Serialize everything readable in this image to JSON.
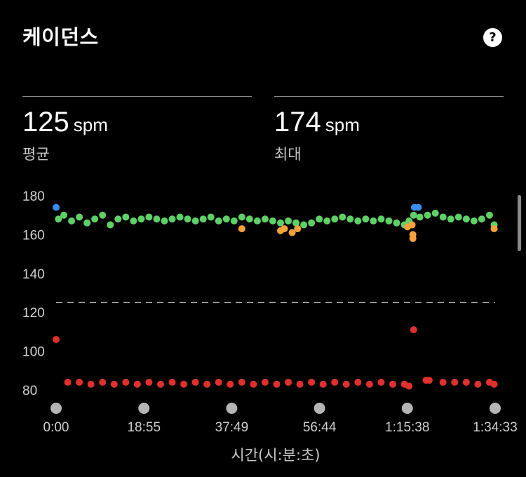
{
  "header": {
    "title": "케이던스",
    "help_icon": "question-icon"
  },
  "stats": [
    {
      "value": "125",
      "unit": "spm",
      "label": "평균"
    },
    {
      "value": "174",
      "unit": "spm",
      "label": "최대"
    }
  ],
  "chart_data": {
    "type": "scatter",
    "xlabel": "시간(시:분:초)",
    "ylabel": "",
    "x_ticks": [
      "0:00",
      "18:55",
      "37:49",
      "56:44",
      "1:15:38",
      "1:34:33"
    ],
    "x_tick_seconds": [
      0,
      1135,
      2269,
      3404,
      4538,
      5673
    ],
    "y_ticks": [
      180,
      160,
      140,
      120,
      100,
      80
    ],
    "ylim": [
      80,
      180
    ],
    "xlim": [
      0,
      5673
    ],
    "average_line": 125,
    "grid": false,
    "colors": {
      "high": "#5fd068",
      "mid": "#f4a23c",
      "peak": "#3b8cf0",
      "low": "#e0302e"
    },
    "series": [
      {
        "color_key": "peak",
        "points": [
          [
            0,
            174
          ],
          [
            4630,
            174
          ],
          [
            4680,
            174
          ]
        ]
      },
      {
        "color_key": "high",
        "points": [
          [
            30,
            168
          ],
          [
            100,
            170
          ],
          [
            200,
            167
          ],
          [
            300,
            169
          ],
          [
            400,
            166
          ],
          [
            500,
            168
          ],
          [
            600,
            170
          ],
          [
            700,
            165
          ],
          [
            800,
            168
          ],
          [
            900,
            169
          ],
          [
            1000,
            167
          ],
          [
            1100,
            168
          ],
          [
            1200,
            169
          ],
          [
            1300,
            168
          ],
          [
            1400,
            167
          ],
          [
            1500,
            168
          ],
          [
            1600,
            169
          ],
          [
            1700,
            168
          ],
          [
            1800,
            167
          ],
          [
            1900,
            168
          ],
          [
            2000,
            169
          ],
          [
            2100,
            167
          ],
          [
            2200,
            168
          ],
          [
            2300,
            167
          ],
          [
            2400,
            169
          ],
          [
            2500,
            168
          ],
          [
            2600,
            167
          ],
          [
            2700,
            168
          ],
          [
            2800,
            167
          ],
          [
            2900,
            166
          ],
          [
            3000,
            167
          ],
          [
            3100,
            166
          ],
          [
            3200,
            165
          ],
          [
            3300,
            166
          ],
          [
            3400,
            168
          ],
          [
            3500,
            167
          ],
          [
            3600,
            168
          ],
          [
            3700,
            169
          ],
          [
            3800,
            168
          ],
          [
            3900,
            167
          ],
          [
            4000,
            168
          ],
          [
            4100,
            167
          ],
          [
            4200,
            168
          ],
          [
            4300,
            167
          ],
          [
            4400,
            166
          ],
          [
            4500,
            165
          ],
          [
            4560,
            167
          ],
          [
            4620,
            170
          ],
          [
            4700,
            169
          ],
          [
            4800,
            170
          ],
          [
            4900,
            171
          ],
          [
            5000,
            169
          ],
          [
            5100,
            168
          ],
          [
            5200,
            169
          ],
          [
            5300,
            168
          ],
          [
            5400,
            167
          ],
          [
            5500,
            168
          ],
          [
            5600,
            170
          ],
          [
            5660,
            165
          ]
        ]
      },
      {
        "color_key": "mid",
        "points": [
          [
            2400,
            163
          ],
          [
            2900,
            162
          ],
          [
            2950,
            163
          ],
          [
            3050,
            161
          ],
          [
            3120,
            163
          ],
          [
            4540,
            164
          ],
          [
            4600,
            165
          ],
          [
            4610,
            160
          ],
          [
            4610,
            158
          ],
          [
            5660,
            163
          ]
        ]
      },
      {
        "color_key": "low",
        "points": [
          [
            0,
            106
          ],
          [
            150,
            84
          ],
          [
            300,
            84
          ],
          [
            450,
            83
          ],
          [
            600,
            84
          ],
          [
            750,
            83
          ],
          [
            900,
            84
          ],
          [
            1050,
            83
          ],
          [
            1200,
            84
          ],
          [
            1350,
            83
          ],
          [
            1500,
            84
          ],
          [
            1650,
            83
          ],
          [
            1800,
            84
          ],
          [
            1950,
            83
          ],
          [
            2100,
            84
          ],
          [
            2250,
            83
          ],
          [
            2400,
            84
          ],
          [
            2550,
            83
          ],
          [
            2700,
            84
          ],
          [
            2850,
            83
          ],
          [
            3000,
            84
          ],
          [
            3150,
            83
          ],
          [
            3300,
            84
          ],
          [
            3450,
            83
          ],
          [
            3600,
            84
          ],
          [
            3750,
            83
          ],
          [
            3900,
            84
          ],
          [
            4050,
            83
          ],
          [
            4200,
            84
          ],
          [
            4350,
            83
          ],
          [
            4500,
            83
          ],
          [
            4560,
            82
          ],
          [
            4620,
            111
          ],
          [
            4780,
            85
          ],
          [
            4820,
            85
          ],
          [
            5000,
            84
          ],
          [
            5150,
            84
          ],
          [
            5300,
            84
          ],
          [
            5450,
            83
          ],
          [
            5600,
            84
          ],
          [
            5660,
            83
          ]
        ]
      }
    ]
  }
}
